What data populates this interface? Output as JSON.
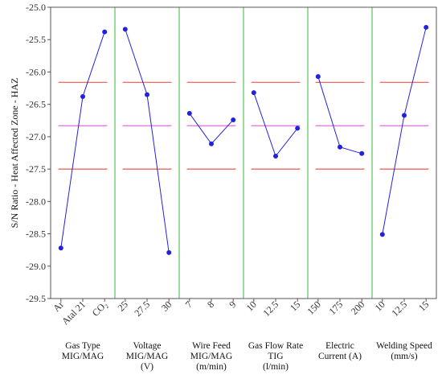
{
  "chart_data": {
    "type": "line",
    "ylabel": "S/N Ratio - Heat Affected Zone - HAZ",
    "ylim": [
      -29.5,
      -25.0
    ],
    "yticks": [
      -25.0,
      -25.5,
      -26.0,
      -26.5,
      -27.0,
      -27.5,
      -28.0,
      -28.5,
      -29.0,
      -29.5
    ],
    "grid": false,
    "mean_line": -26.83,
    "upper_limit": -26.16,
    "lower_limit": -27.5,
    "colors": {
      "series": "#2222dd",
      "separator": "#33bb33",
      "mean_line": "#ee66ee",
      "limit_lines": "#ee5555",
      "frame": "#555555"
    },
    "factors": [
      {
        "label_lines": [
          "Gas Type",
          "MIG/MAG"
        ],
        "levels": [
          "Ar",
          "Atal 21",
          "CO₂"
        ],
        "values": [
          -28.72,
          -26.38,
          -25.38
        ]
      },
      {
        "label_lines": [
          "Voltage",
          "MIG/MAG",
          "(V)"
        ],
        "levels": [
          "25",
          "27.5",
          "30"
        ],
        "values": [
          -25.34,
          -26.35,
          -28.79
        ]
      },
      {
        "label_lines": [
          "Wire Feed",
          "MIG/MAG",
          "(m/min)"
        ],
        "levels": [
          "7",
          "8",
          "9"
        ],
        "values": [
          -26.64,
          -27.11,
          -26.74
        ]
      },
      {
        "label_lines": [
          "Gas Flow Rate",
          "TIG",
          "(l/min)"
        ],
        "levels": [
          "10",
          "12.5",
          "15"
        ],
        "values": [
          -26.32,
          -27.3,
          -26.87
        ]
      },
      {
        "label_lines": [
          "Electric",
          "Current (A)"
        ],
        "levels": [
          "150",
          "175",
          "200"
        ],
        "values": [
          -26.07,
          -27.16,
          -27.26
        ]
      },
      {
        "label_lines": [
          "Welding Speed",
          "(mm/s)"
        ],
        "levels": [
          "10",
          "12.5",
          "15"
        ],
        "values": [
          -28.51,
          -26.67,
          -25.31
        ]
      }
    ]
  }
}
